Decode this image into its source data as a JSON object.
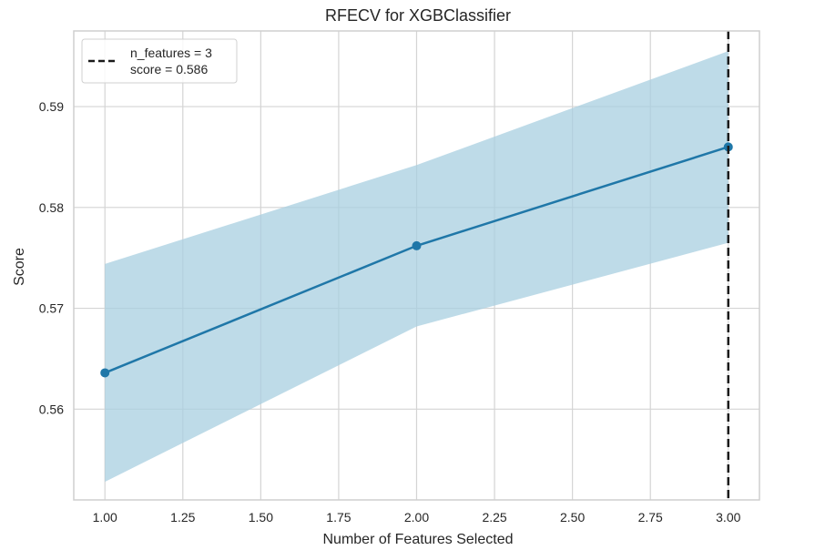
{
  "chart_data": {
    "type": "line",
    "title": "RFECV for XGBClassifier",
    "xlabel": "Number of Features Selected",
    "ylabel": "Score",
    "x": [
      1,
      2,
      3
    ],
    "series": [
      {
        "values": [
          0.5636,
          0.5762,
          0.586
        ],
        "lower": [
          0.5528,
          0.5682,
          0.5765
        ],
        "upper": [
          0.5744,
          0.5842,
          0.5955
        ]
      }
    ],
    "xlim": [
      0.9,
      3.1
    ],
    "ylim": [
      0.551,
      0.5975
    ],
    "xticks": [
      1.0,
      1.25,
      1.5,
      1.75,
      2.0,
      2.25,
      2.5,
      2.75,
      3.0
    ],
    "xtick_labels": [
      "1.00",
      "1.25",
      "1.50",
      "1.75",
      "2.00",
      "2.25",
      "2.50",
      "2.75",
      "3.00"
    ],
    "yticks": [
      0.56,
      0.57,
      0.58,
      0.59
    ],
    "ytick_labels": [
      "0.56",
      "0.57",
      "0.58",
      "0.59"
    ],
    "vline_x": 3,
    "legend": {
      "placement": "top-left",
      "line1": "n_features = 3",
      "line2": "score = 0.586"
    },
    "grid": true,
    "colors": {
      "line": "#1f77a8",
      "band": "#a8cfe0",
      "grid": "#d4d4d4",
      "frame": "#cfcfcf",
      "vline": "#1a1a1a"
    }
  }
}
